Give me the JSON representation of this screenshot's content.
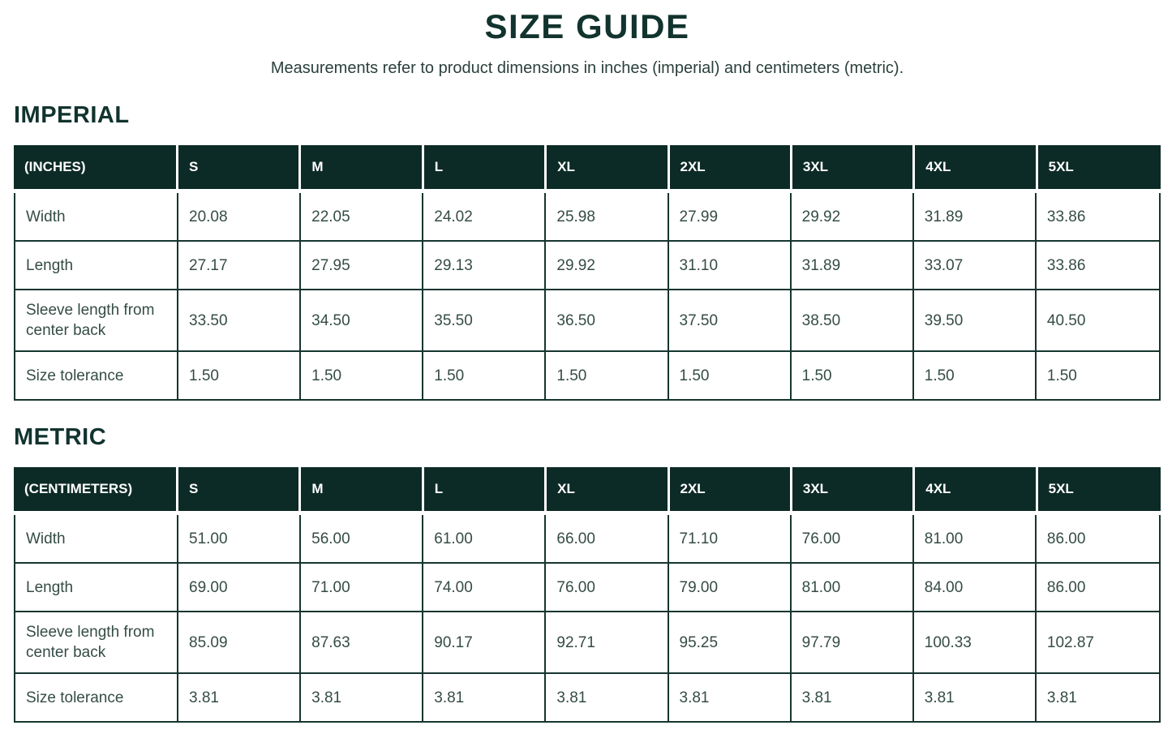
{
  "page": {
    "title": "SIZE GUIDE",
    "subtitle": "Measurements refer to product dimensions in inches (imperial) and centimeters (metric)."
  },
  "colors": {
    "heading_text": "#12332e",
    "header_background": "#0d2b26",
    "cell_text": "#354c46",
    "border": "#16352f",
    "background": "#ffffff"
  },
  "tables": [
    {
      "section_title": "IMPERIAL",
      "unit_label": "(INCHES)",
      "columns": [
        "S",
        "M",
        "L",
        "XL",
        "2XL",
        "3XL",
        "4XL",
        "5XL"
      ],
      "rows": [
        {
          "label": "Width",
          "values": [
            "20.08",
            "22.05",
            "24.02",
            "25.98",
            "27.99",
            "29.92",
            "31.89",
            "33.86"
          ]
        },
        {
          "label": "Length",
          "values": [
            "27.17",
            "27.95",
            "29.13",
            "29.92",
            "31.10",
            "31.89",
            "33.07",
            "33.86"
          ]
        },
        {
          "label": "Sleeve length from center back",
          "values": [
            "33.50",
            "34.50",
            "35.50",
            "36.50",
            "37.50",
            "38.50",
            "39.50",
            "40.50"
          ]
        },
        {
          "label": "Size tolerance",
          "values": [
            "1.50",
            "1.50",
            "1.50",
            "1.50",
            "1.50",
            "1.50",
            "1.50",
            "1.50"
          ]
        }
      ]
    },
    {
      "section_title": "METRIC",
      "unit_label": "(CENTIMETERS)",
      "columns": [
        "S",
        "M",
        "L",
        "XL",
        "2XL",
        "3XL",
        "4XL",
        "5XL"
      ],
      "rows": [
        {
          "label": "Width",
          "values": [
            "51.00",
            "56.00",
            "61.00",
            "66.00",
            "71.10",
            "76.00",
            "81.00",
            "86.00"
          ]
        },
        {
          "label": "Length",
          "values": [
            "69.00",
            "71.00",
            "74.00",
            "76.00",
            "79.00",
            "81.00",
            "84.00",
            "86.00"
          ]
        },
        {
          "label": "Sleeve length from center back",
          "values": [
            "85.09",
            "87.63",
            "90.17",
            "92.71",
            "95.25",
            "97.79",
            "100.33",
            "102.87"
          ]
        },
        {
          "label": "Size tolerance",
          "values": [
            "3.81",
            "3.81",
            "3.81",
            "3.81",
            "3.81",
            "3.81",
            "3.81",
            "3.81"
          ]
        }
      ]
    }
  ]
}
